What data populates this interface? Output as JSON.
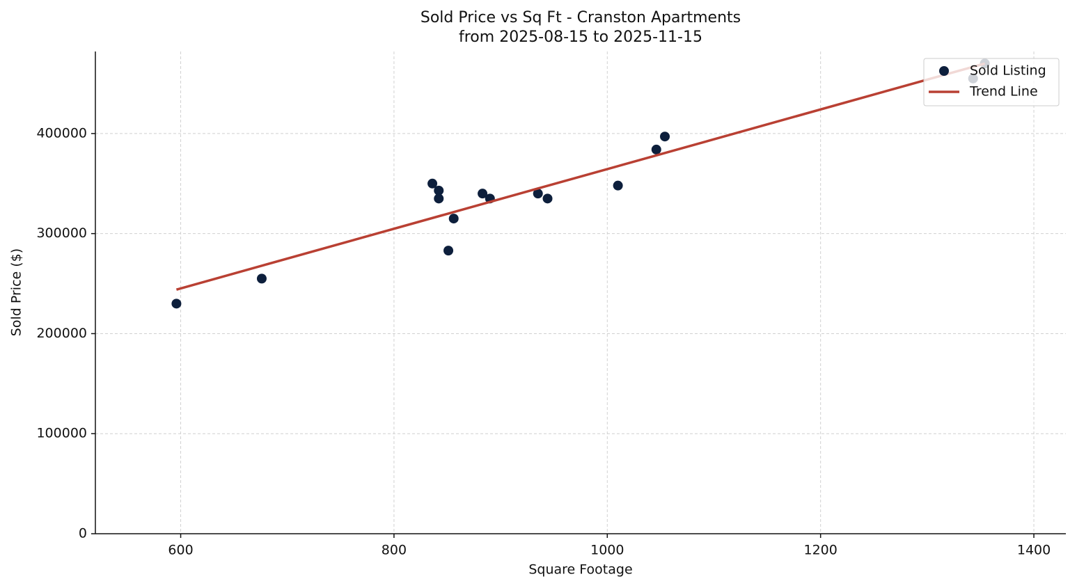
{
  "chart_data": {
    "type": "scatter",
    "title": "Sold Price vs Sq Ft - Cranston Apartments",
    "subtitle": "from 2025-08-15 to 2025-11-15",
    "x_label": "Square Footage",
    "y_label": "Sold Price ($)",
    "xlim": [
      520,
      1430
    ],
    "xticks": [
      600,
      800,
      1000,
      1200,
      1400
    ],
    "ylim": [
      0,
      482000
    ],
    "yticks": [
      0,
      100000,
      200000,
      300000,
      400000
    ],
    "grid": true,
    "legend": "upper right",
    "series": [
      {
        "name": "Sold Listing",
        "type": "scatter",
        "color": "#0d1f3c",
        "x": [
          596,
          676,
          836,
          842,
          842,
          856,
          851,
          883,
          890,
          935,
          944,
          1010,
          1046,
          1054,
          1343,
          1354
        ],
        "values": [
          230000,
          255000,
          350000,
          343000,
          335000,
          315000,
          283000,
          340000,
          335000,
          340000,
          335000,
          348000,
          384000,
          397000,
          455000,
          470000
        ]
      },
      {
        "name": "Trend Line",
        "type": "line",
        "color": "#b94033",
        "x": [
          596,
          1354
        ],
        "values": [
          244000,
          470000
        ]
      }
    ]
  }
}
